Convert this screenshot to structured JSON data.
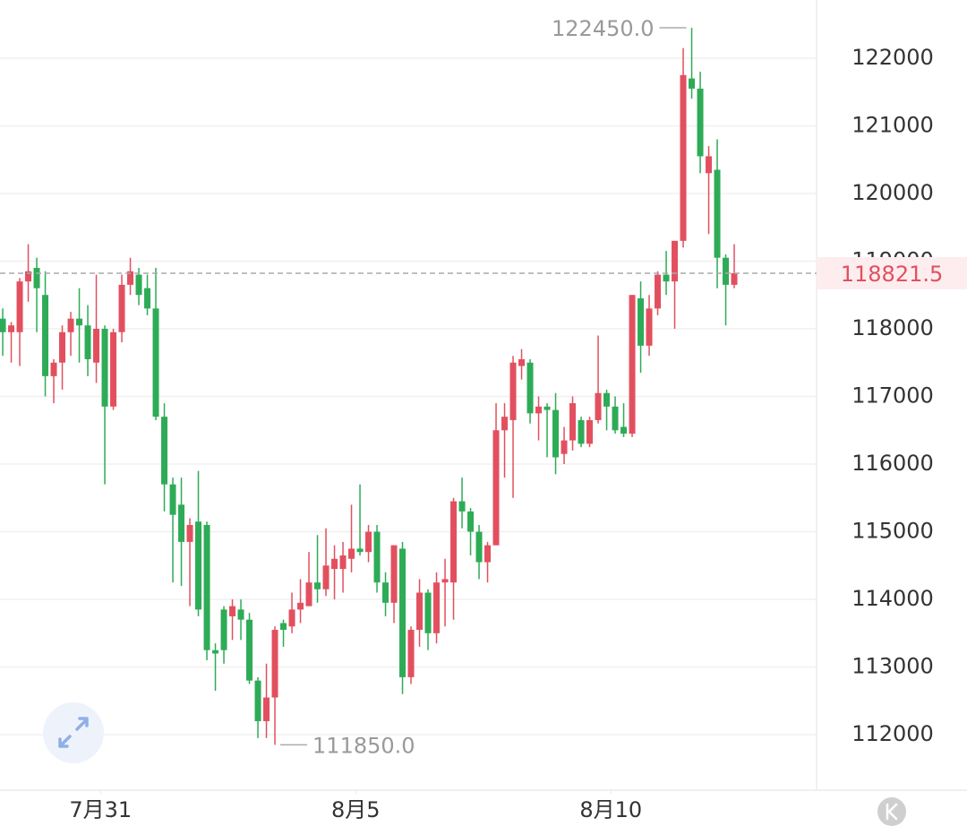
{
  "chart_data": {
    "type": "candlestick",
    "ylim": [
      111180,
      122860
    ],
    "yticks": [
      112000,
      113000,
      114000,
      115000,
      116000,
      117000,
      118000,
      119000,
      120000,
      121000,
      122000
    ],
    "xlim": [
      -0.32,
      95.68
    ],
    "xticks": [
      {
        "value": 11.5,
        "label": "7月31"
      },
      {
        "value": 41.5,
        "label": "8月5"
      },
      {
        "value": 71.5,
        "label": "8月10"
      }
    ],
    "up_color": "#e2505f",
    "down_color": "#2eab57",
    "grid": true,
    "ohlc": [
      [
        118150,
        118300,
        117600,
        117950
      ],
      [
        117950,
        118100,
        117500,
        118050
      ],
      [
        117950,
        118750,
        117450,
        118700
      ],
      [
        118700,
        119250,
        118400,
        118850
      ],
      [
        118900,
        119050,
        117950,
        118600
      ],
      [
        118500,
        118850,
        117000,
        117300
      ],
      [
        117300,
        117550,
        116900,
        117500
      ],
      [
        117500,
        118050,
        117100,
        117950
      ],
      [
        117950,
        118250,
        117600,
        118150
      ],
      [
        118150,
        118600,
        117500,
        118050
      ],
      [
        118050,
        118350,
        117300,
        117550
      ],
      [
        117500,
        118800,
        117200,
        118000
      ],
      [
        118000,
        118050,
        115700,
        116850
      ],
      [
        116850,
        118000,
        116800,
        117950
      ],
      [
        117950,
        118800,
        117800,
        118650
      ],
      [
        118650,
        119050,
        118500,
        118850
      ],
      [
        118800,
        118900,
        118350,
        118500
      ],
      [
        118600,
        118800,
        118200,
        118300
      ],
      [
        118300,
        118900,
        116650,
        116700
      ],
      [
        116700,
        116900,
        115300,
        115700
      ],
      [
        115700,
        115800,
        114250,
        115250
      ],
      [
        115400,
        115800,
        114200,
        114850
      ],
      [
        114850,
        115200,
        113900,
        115100
      ],
      [
        115150,
        115900,
        113750,
        113850
      ],
      [
        115100,
        115150,
        113100,
        113250
      ],
      [
        113250,
        113350,
        112650,
        113200
      ],
      [
        113850,
        113900,
        113050,
        113250
      ],
      [
        113750,
        114000,
        113400,
        113900
      ],
      [
        113850,
        114000,
        113400,
        113700
      ],
      [
        113700,
        113800,
        112750,
        112800
      ],
      [
        112800,
        112850,
        111950,
        112200
      ],
      [
        112200,
        113050,
        111950,
        112550
      ],
      [
        112550,
        113600,
        111850,
        113550
      ],
      [
        113650,
        113700,
        113300,
        113550
      ],
      [
        113600,
        114100,
        113500,
        113850
      ],
      [
        113850,
        114300,
        113650,
        113950
      ],
      [
        113900,
        114700,
        113900,
        114250
      ],
      [
        114250,
        114950,
        113950,
        114150
      ],
      [
        114150,
        115050,
        114050,
        114500
      ],
      [
        114450,
        114800,
        114000,
        114600
      ],
      [
        114450,
        114850,
        114100,
        114650
      ],
      [
        114600,
        115400,
        114400,
        114750
      ],
      [
        114750,
        115700,
        114650,
        114700
      ],
      [
        114700,
        115100,
        114550,
        115000
      ],
      [
        115000,
        115100,
        114100,
        114250
      ],
      [
        114250,
        114400,
        113750,
        113950
      ],
      [
        113950,
        114800,
        113650,
        114800
      ],
      [
        114750,
        114850,
        112600,
        112850
      ],
      [
        112850,
        113600,
        112750,
        113550
      ],
      [
        113550,
        114300,
        113300,
        114100
      ],
      [
        114100,
        114150,
        113250,
        113500
      ],
      [
        113500,
        114400,
        113350,
        114250
      ],
      [
        114250,
        114600,
        113600,
        114300
      ],
      [
        114250,
        115500,
        113700,
        115450
      ],
      [
        115450,
        115800,
        115050,
        115300
      ],
      [
        115300,
        115350,
        114650,
        115000
      ],
      [
        115000,
        115100,
        114300,
        114550
      ],
      [
        114550,
        114850,
        114250,
        114800
      ],
      [
        114800,
        116900,
        114800,
        116500
      ],
      [
        116500,
        116900,
        115800,
        116700
      ],
      [
        116650,
        117600,
        115500,
        117500
      ],
      [
        117450,
        117700,
        117250,
        117550
      ],
      [
        117500,
        117550,
        116600,
        116750
      ],
      [
        116750,
        117000,
        116350,
        116850
      ],
      [
        116850,
        116900,
        116100,
        116800
      ],
      [
        116800,
        117050,
        115850,
        116100
      ],
      [
        116150,
        116550,
        116000,
        116350
      ],
      [
        116350,
        117000,
        116200,
        116900
      ],
      [
        116650,
        116700,
        116250,
        116300
      ],
      [
        116300,
        116700,
        116250,
        116650
      ],
      [
        116650,
        117900,
        116600,
        117050
      ],
      [
        117050,
        117100,
        116500,
        116850
      ],
      [
        116850,
        117000,
        116450,
        116500
      ],
      [
        116550,
        116900,
        116400,
        116450
      ],
      [
        116450,
        118500,
        116400,
        118500
      ],
      [
        118450,
        118700,
        117350,
        117750
      ],
      [
        117750,
        118500,
        117600,
        118300
      ],
      [
        118300,
        118850,
        118200,
        118800
      ],
      [
        118800,
        119150,
        118500,
        118700
      ],
      [
        118700,
        119300,
        118000,
        119300
      ],
      [
        119300,
        122150,
        119200,
        121750
      ],
      [
        121700,
        122450,
        121400,
        121550
      ],
      [
        121550,
        121800,
        120300,
        120550
      ],
      [
        120300,
        120700,
        119400,
        120550
      ],
      [
        120350,
        120800,
        118600,
        119050
      ],
      [
        119050,
        119100,
        118050,
        118650
      ],
      [
        118650,
        119250,
        118600,
        118821.5
      ]
    ],
    "last_price": 118821.5,
    "last_price_label": "118821.5",
    "annotations": [
      {
        "value": 122450,
        "value_label": "122450.0",
        "candle": 81,
        "side": "left"
      },
      {
        "value": 111850,
        "value_label": "111850.0",
        "candle": 32,
        "side": "right"
      }
    ]
  }
}
